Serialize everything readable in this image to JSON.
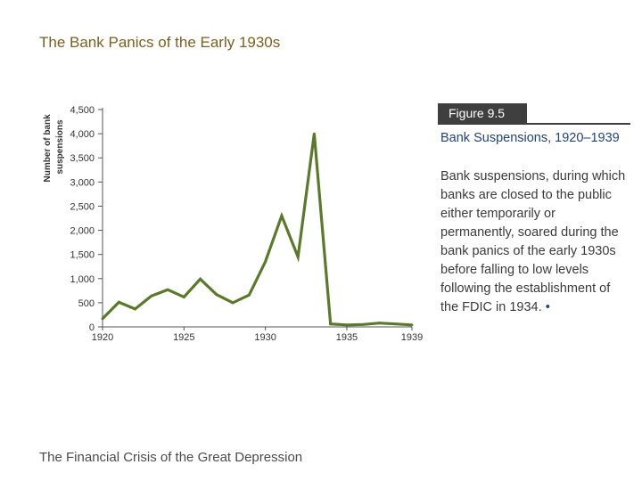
{
  "slide": {
    "title": "The Bank Panics of the Early 1930s",
    "footer": "The Financial Crisis of the Great Depression"
  },
  "figure": {
    "badge": "Figure 9.5",
    "heading": "Bank Suspensions, 1920–1939",
    "caption": "Bank suspensions, during which banks are closed to the public either temporarily or permanently, soared during the bank panics of the early 1930s before falling to low levels following the establishment of the FDIC in 1934.",
    "bullet": "•"
  },
  "colors": {
    "title": "#7a6020",
    "line": "#5a7a2a",
    "heading": "#23437a",
    "badge_bg": "#3f3f3f"
  },
  "chart_data": {
    "type": "line",
    "title": "",
    "xlabel": "",
    "ylabel": "Number of bank suspensions",
    "xlim": [
      1920,
      1939
    ],
    "ylim": [
      0,
      4500
    ],
    "xticks": [
      1920,
      1925,
      1930,
      1935,
      1939
    ],
    "yticks": [
      0,
      500,
      1000,
      1500,
      2000,
      2500,
      3000,
      3500,
      4000,
      4500
    ],
    "ytick_labels": [
      "0",
      "500",
      "1,000",
      "1,500",
      "2,000",
      "2,500",
      "3,000",
      "3,500",
      "4,000",
      "4,500"
    ],
    "grid": false,
    "series": [
      {
        "x": [
          1920,
          1921,
          1922,
          1923,
          1924,
          1925,
          1926,
          1927,
          1928,
          1929,
          1930,
          1931,
          1932,
          1933,
          1934,
          1935,
          1936,
          1937,
          1938,
          1939
        ],
        "values": [
          170,
          510,
          370,
          640,
          770,
          620,
          990,
          670,
          500,
          660,
          1350,
          2300,
          1450,
          4000,
          60,
          40,
          50,
          80,
          60,
          40
        ]
      }
    ]
  }
}
